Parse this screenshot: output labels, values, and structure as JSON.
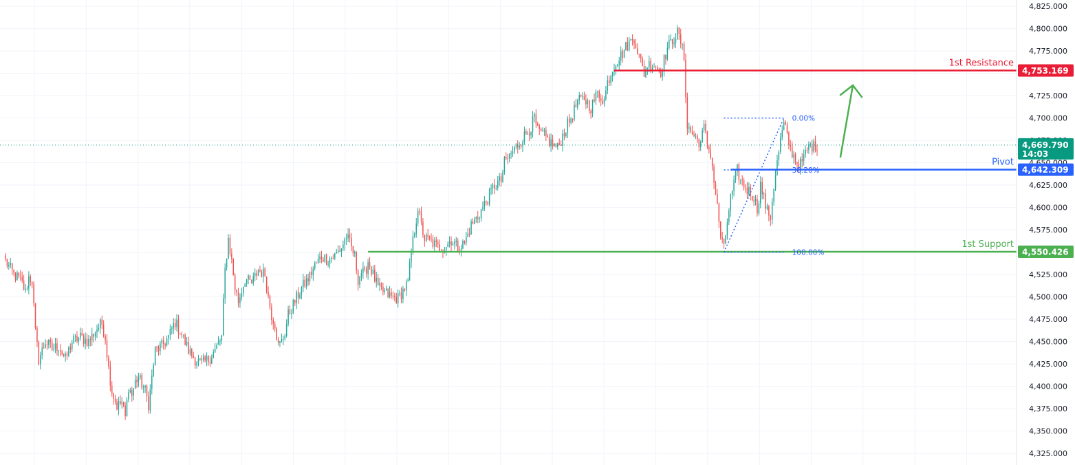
{
  "colors": {
    "up": "#26a69a",
    "down": "#ef5350",
    "resistance": "#e91e36",
    "pivot": "#2962ff",
    "support": "#4caf50",
    "current": "#089981",
    "fib": "#2962ff",
    "grid": "#f0f3fa",
    "arrow": "#4caf50"
  },
  "chart_data": {
    "type": "candlestick",
    "ylim": [
      4312,
      4832
    ],
    "y_ticks": [
      "4,325.000",
      "4,350.000",
      "4,375.000",
      "4,400.000",
      "4,425.000",
      "4,450.000",
      "4,475.000",
      "4,500.000",
      "4,525.000",
      "4,550.000",
      "4,575.000",
      "4,600.000",
      "4,625.000",
      "4,650.000",
      "4,675.000",
      "4,700.000",
      "4,725.000",
      "4,750.000",
      "4,775.000",
      "4,800.000",
      "4,825.000"
    ],
    "grid": true,
    "candle_path": [
      [
        0,
        4540
      ],
      [
        5,
        4525
      ],
      [
        8,
        4520
      ],
      [
        10,
        4515
      ],
      [
        12,
        4505
      ],
      [
        14,
        4522
      ],
      [
        16,
        4518
      ],
      [
        18,
        4460
      ],
      [
        20,
        4430
      ],
      [
        24,
        4450
      ],
      [
        28,
        4442
      ],
      [
        32,
        4445
      ],
      [
        36,
        4430
      ],
      [
        40,
        4450
      ],
      [
        45,
        4455
      ],
      [
        50,
        4450
      ],
      [
        55,
        4465
      ],
      [
        58,
        4470
      ],
      [
        60,
        4455
      ],
      [
        62,
        4420
      ],
      [
        64,
        4395
      ],
      [
        67,
        4378
      ],
      [
        70,
        4382
      ],
      [
        72,
        4365
      ],
      [
        74,
        4400
      ],
      [
        76,
        4390
      ],
      [
        78,
        4405
      ],
      [
        80,
        4410
      ],
      [
        84,
        4395
      ],
      [
        86,
        4380
      ],
      [
        88,
        4410
      ],
      [
        90,
        4440
      ],
      [
        94,
        4445
      ],
      [
        98,
        4455
      ],
      [
        102,
        4472
      ],
      [
        106,
        4458
      ],
      [
        110,
        4440
      ],
      [
        114,
        4430
      ],
      [
        118,
        4425
      ],
      [
        122,
        4430
      ],
      [
        126,
        4440
      ],
      [
        130,
        4455
      ],
      [
        132,
        4530
      ],
      [
        134,
        4565
      ],
      [
        136,
        4540
      ],
      [
        138,
        4510
      ],
      [
        140,
        4495
      ],
      [
        144,
        4520
      ],
      [
        148,
        4515
      ],
      [
        152,
        4530
      ],
      [
        156,
        4525
      ],
      [
        158,
        4500
      ],
      [
        160,
        4480
      ],
      [
        162,
        4470
      ],
      [
        164,
        4445
      ],
      [
        166,
        4450
      ],
      [
        168,
        4460
      ],
      [
        170,
        4480
      ],
      [
        174,
        4495
      ],
      [
        178,
        4510
      ],
      [
        182,
        4520
      ],
      [
        186,
        4535
      ],
      [
        190,
        4545
      ],
      [
        194,
        4542
      ],
      [
        198,
        4546
      ],
      [
        202,
        4555
      ],
      [
        205,
        4568
      ],
      [
        207,
        4560
      ],
      [
        210,
        4545
      ],
      [
        212,
        4520
      ],
      [
        214,
        4528
      ],
      [
        216,
        4525
      ],
      [
        218,
        4540
      ],
      [
        220,
        4530
      ],
      [
        222,
        4520
      ],
      [
        224,
        4510
      ],
      [
        228,
        4505
      ],
      [
        232,
        4500
      ],
      [
        236,
        4498
      ],
      [
        240,
        4510
      ],
      [
        242,
        4515
      ],
      [
        244,
        4550
      ],
      [
        246,
        4575
      ],
      [
        248,
        4600
      ],
      [
        250,
        4580
      ],
      [
        252,
        4565
      ],
      [
        256,
        4562
      ],
      [
        260,
        4555
      ],
      [
        264,
        4556
      ],
      [
        268,
        4564
      ],
      [
        272,
        4555
      ],
      [
        276,
        4560
      ],
      [
        280,
        4580
      ],
      [
        284,
        4590
      ],
      [
        287,
        4600
      ],
      [
        290,
        4610
      ],
      [
        294,
        4625
      ],
      [
        298,
        4630
      ],
      [
        300,
        4650
      ],
      [
        304,
        4660
      ],
      [
        308,
        4670
      ],
      [
        312,
        4680
      ],
      [
        316,
        4690
      ],
      [
        318,
        4700
      ],
      [
        320,
        4685
      ],
      [
        324,
        4680
      ],
      [
        328,
        4672
      ],
      [
        332,
        4666
      ],
      [
        336,
        4685
      ],
      [
        340,
        4700
      ],
      [
        344,
        4718
      ],
      [
        348,
        4722
      ],
      [
        352,
        4712
      ],
      [
        356,
        4728
      ],
      [
        360,
        4720
      ],
      [
        362,
        4740
      ],
      [
        366,
        4760
      ],
      [
        370,
        4770
      ],
      [
        374,
        4782
      ],
      [
        378,
        4790
      ],
      [
        382,
        4762
      ],
      [
        384,
        4750
      ],
      [
        386,
        4760
      ],
      [
        390,
        4760
      ],
      [
        394,
        4752
      ],
      [
        398,
        4778
      ],
      [
        402,
        4790
      ],
      [
        404,
        4795
      ],
      [
        406,
        4785
      ],
      [
        408,
        4768
      ],
      [
        410,
        4690
      ],
      [
        414,
        4680
      ],
      [
        418,
        4672
      ],
      [
        420,
        4690
      ],
      [
        422,
        4670
      ],
      [
        424,
        4660
      ],
      [
        428,
        4600
      ],
      [
        430,
        4568
      ],
      [
        432,
        4553
      ],
      [
        434,
        4585
      ],
      [
        436,
        4610
      ],
      [
        438,
        4625
      ],
      [
        440,
        4642
      ],
      [
        442,
        4630
      ],
      [
        446,
        4620
      ],
      [
        450,
        4612
      ],
      [
        452,
        4598
      ],
      [
        454,
        4625
      ],
      [
        456,
        4610
      ],
      [
        458,
        4595
      ],
      [
        460,
        4590
      ],
      [
        462,
        4625
      ],
      [
        464,
        4650
      ],
      [
        466,
        4675
      ],
      [
        468,
        4693
      ],
      [
        470,
        4680
      ],
      [
        472,
        4665
      ],
      [
        474,
        4658
      ],
      [
        476,
        4650
      ],
      [
        478,
        4648
      ],
      [
        480,
        4655
      ],
      [
        482,
        4665
      ],
      [
        484,
        4670
      ],
      [
        486,
        4668
      ],
      [
        488,
        4670
      ]
    ],
    "levels": [
      {
        "name": "1st Resistance",
        "value": 4753.169,
        "label": "4,753.169",
        "color": "resistance"
      },
      {
        "name": "Pivot",
        "value": 4642.309,
        "label": "4,642.309",
        "color": "pivot"
      },
      {
        "name": "1st Support",
        "value": 4550.426,
        "label": "4,550.426",
        "color": "support"
      }
    ],
    "current_price": {
      "value": 4669.79,
      "label": "4,669.790",
      "countdown": "14:03"
    },
    "fibonacci": [
      {
        "label": "0.00%",
        "value": 4700
      },
      {
        "label": "38.20%",
        "value": 4642
      },
      {
        "label": "100.00%",
        "value": 4550
      }
    ]
  }
}
